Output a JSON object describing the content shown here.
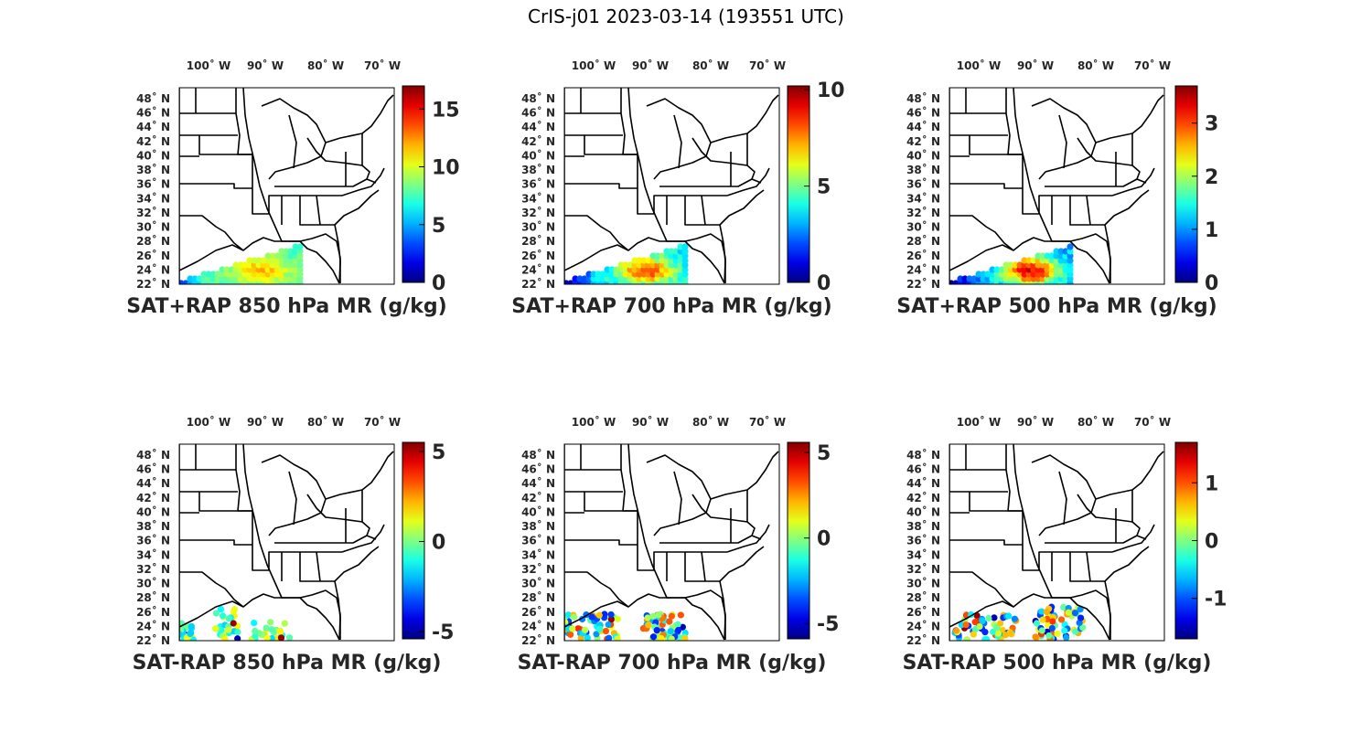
{
  "title": "CrIS-j01 2023-03-14 (193551 UTC)",
  "lon_labels": [
    "100",
    "90",
    "80",
    "70"
  ],
  "lon_suffix": "W",
  "lat_labels": [
    "48",
    "46",
    "44",
    "42",
    "40",
    "38",
    "36",
    "34",
    "32",
    "30",
    "28",
    "26",
    "24",
    "22"
  ],
  "lat_suffix": "N",
  "colormap": "jet",
  "panels": [
    {
      "title": "SAT+RAP 850 hPa MR (g/kg)",
      "cbar_ticks": [
        "15",
        "10",
        "5",
        "0"
      ],
      "cbar_range": [
        0,
        17
      ],
      "field": "total_850"
    },
    {
      "title": "SAT+RAP 700 hPa MR (g/kg)",
      "cbar_ticks": [
        "10",
        "5",
        "0"
      ],
      "cbar_range": [
        0,
        10.2
      ],
      "field": "total_700"
    },
    {
      "title": "SAT+RAP 500 hPa MR (g/kg)",
      "cbar_ticks": [
        "3",
        "2",
        "1",
        "0"
      ],
      "cbar_range": [
        0,
        3.7
      ],
      "field": "total_500"
    },
    {
      "title": "SAT-RAP 850 hPa MR (g/kg)",
      "cbar_ticks": [
        "5",
        "0",
        "-5"
      ],
      "cbar_range": [
        -5.4,
        5.5
      ],
      "field": "diff_850"
    },
    {
      "title": "SAT-RAP 700 hPa MR (g/kg)",
      "cbar_ticks": [
        "5",
        "0",
        "-5"
      ],
      "cbar_range": [
        -5.9,
        5.6
      ],
      "field": "diff_700"
    },
    {
      "title": "SAT-RAP 500 hPa MR (g/kg)",
      "cbar_ticks": [
        "1",
        "0",
        "-1"
      ],
      "cbar_range": [
        -1.7,
        1.7
      ],
      "field": "diff_500"
    }
  ]
}
